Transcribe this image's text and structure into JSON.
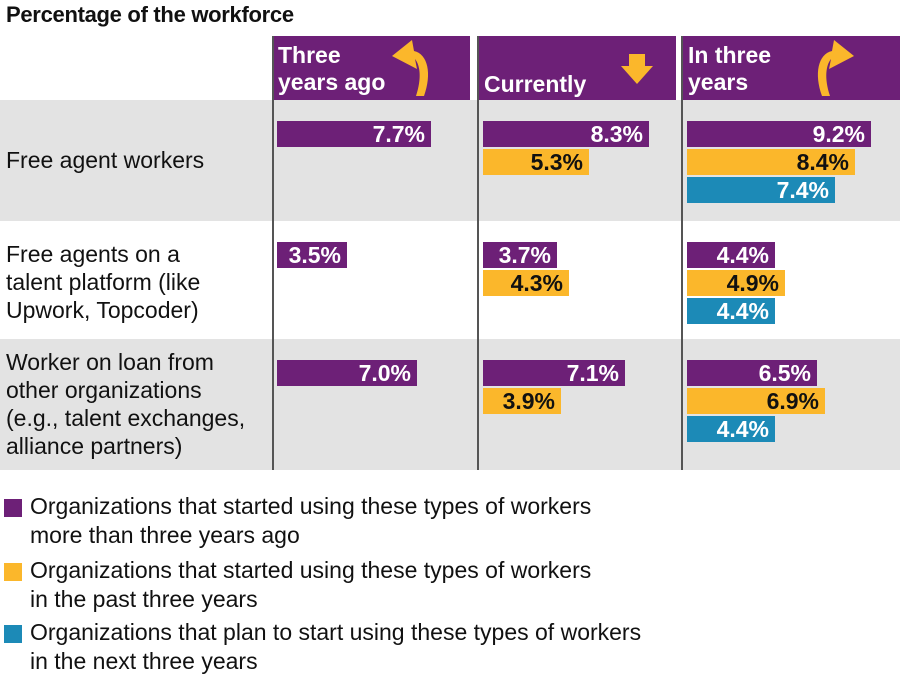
{
  "title": "Percentage of the workforce",
  "colors": {
    "past": "#6d2077",
    "recent": "#fbb72b",
    "future": "#1c8ab7",
    "header_bg": "#6d2077",
    "row_alt": "#e3e3e3",
    "arrow": "#fbb72b"
  },
  "chart_data": {
    "type": "bar",
    "title": "Percentage of the workforce",
    "columns": [
      "Three years ago",
      "Currently",
      "In three years"
    ],
    "categories": [
      "Free agent workers",
      "Free agents on a talent platform (like Upwork, Topcoder)",
      "Worker on loan from other organizations (e.g., talent exchanges, alliance partners)"
    ],
    "unit": "%",
    "series": [
      {
        "name": "Organizations that started using these types of workers more than three years ago",
        "values": {
          "Three years ago": [
            7.7,
            3.5,
            7.0
          ],
          "Currently": [
            8.3,
            3.7,
            7.1
          ],
          "In three years": [
            9.2,
            4.4,
            6.5
          ]
        }
      },
      {
        "name": "Organizations that started using these types of workers in the past three years",
        "values": {
          "Three years ago": [
            null,
            null,
            null
          ],
          "Currently": [
            5.3,
            4.3,
            3.9
          ],
          "In three years": [
            8.4,
            4.9,
            6.9
          ]
        }
      },
      {
        "name": "Organizations that plan to start using these types of workers in the next three years",
        "values": {
          "Three years ago": [
            null,
            null,
            null
          ],
          "Currently": [
            null,
            null,
            null
          ],
          "In three years": [
            7.4,
            4.4,
            4.4
          ]
        }
      }
    ],
    "labels": {
      "Three years ago": [
        [
          "7.7%"
        ],
        [
          "3.5%"
        ],
        [
          "7.0%"
        ]
      ],
      "Currently": [
        [
          "8.3%",
          "5.3%"
        ],
        [
          "3.7%",
          "4.3%"
        ],
        [
          "7.1%",
          "3.9%"
        ]
      ],
      "In three years": [
        [
          "9.2%",
          "8.4%",
          "7.4%"
        ],
        [
          "4.4%",
          "4.9%",
          "4.4%"
        ],
        [
          "6.5%",
          "6.9%",
          "4.4%"
        ]
      ]
    },
    "header_lines": [
      [
        "Three",
        "years ago"
      ],
      [
        "Currently"
      ],
      [
        "In three",
        "years"
      ]
    ],
    "row_lines": [
      [
        "Free agent workers"
      ],
      [
        "Free agents on a",
        "talent platform (like",
        "Upwork, Topcoder)"
      ],
      [
        "Worker on loan from",
        "other organizations",
        "(e.g., talent exchanges,",
        "alliance partners)"
      ]
    ],
    "legend": [
      [
        "Organizations that started using these types of workers",
        "more than three years ago"
      ],
      [
        "Organizations that started using these types of workers",
        "in the past three years"
      ],
      [
        "Organizations that plan to start using these types of workers",
        "in the next three years"
      ]
    ],
    "xlim": [
      0,
      10
    ]
  }
}
